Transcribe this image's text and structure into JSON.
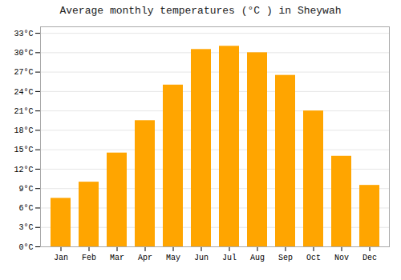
{
  "chart_data": {
    "type": "bar",
    "title": "Average monthly temperatures (°C ) in Sheywah",
    "categories": [
      "Jan",
      "Feb",
      "Mar",
      "Apr",
      "May",
      "Jun",
      "Jul",
      "Aug",
      "Sep",
      "Oct",
      "Nov",
      "Dec"
    ],
    "values": [
      7.5,
      10.0,
      14.5,
      19.5,
      25.0,
      30.5,
      31.0,
      30.0,
      26.5,
      21.0,
      14.0,
      9.5
    ],
    "color": "#FFA500",
    "ylim": [
      0,
      34
    ],
    "yticks": [
      {
        "value": 0,
        "label": "0°C"
      },
      {
        "value": 3,
        "label": "3°C"
      },
      {
        "value": 6,
        "label": "6°C"
      },
      {
        "value": 9,
        "label": "9°C"
      },
      {
        "value": 12,
        "label": "12°C"
      },
      {
        "value": 15,
        "label": "15°C"
      },
      {
        "value": 18,
        "label": "18°C"
      },
      {
        "value": 21,
        "label": "21°C"
      },
      {
        "value": 24,
        "label": "24°C"
      },
      {
        "value": 27,
        "label": "27°C"
      },
      {
        "value": 30,
        "label": "30°C"
      },
      {
        "value": 33,
        "label": "33°C"
      }
    ],
    "grid": true
  }
}
